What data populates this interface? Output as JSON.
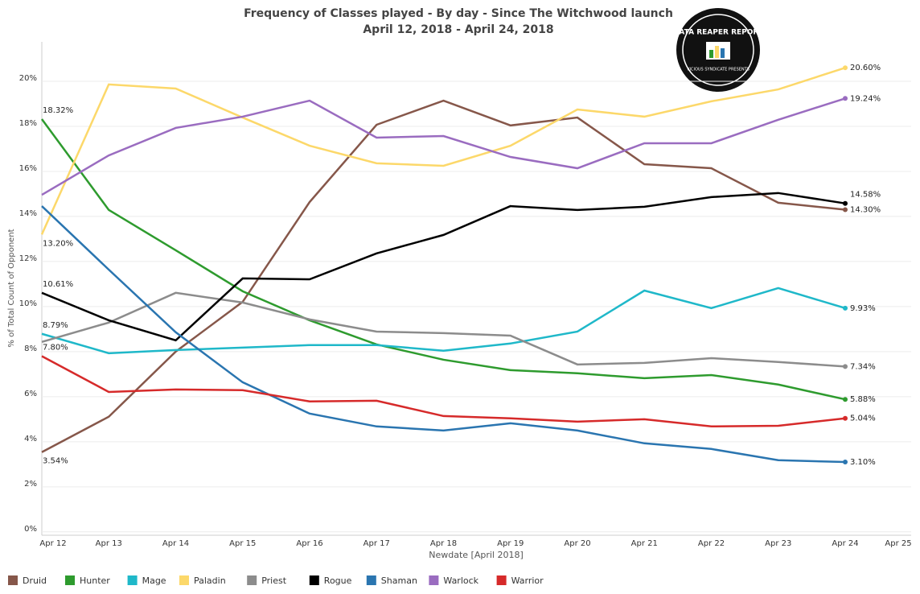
{
  "chart_data": {
    "type": "line",
    "title": "Frequency of Classes played - By day - Since The Witchwood launch",
    "subtitle": "April 12, 2018 - April 24, 2018",
    "logo": "DATA REAPER REPORT",
    "logo_subtext": "VICIOUS SYNDICATE PRESENTS",
    "x_label": "Newdate [April 2018]",
    "y_label": "% of Total Count of Opponent",
    "categories": [
      "Apr 12",
      "Apr 13",
      "Apr 14",
      "Apr 15",
      "Apr 16",
      "Apr 17",
      "Apr 18",
      "Apr 19",
      "Apr 20",
      "Apr 21",
      "Apr 22",
      "Apr 23",
      "Apr 24",
      "Apr 25"
    ],
    "ylim": [
      -0.15,
      21.75
    ],
    "yticks": [
      {
        "value": 0,
        "label": "0%"
      },
      {
        "value": 2,
        "label": "2%"
      },
      {
        "value": 4,
        "label": "4%"
      },
      {
        "value": 6,
        "label": "6%"
      },
      {
        "value": 8,
        "label": "8%"
      },
      {
        "value": 10,
        "label": "10%"
      },
      {
        "value": 12,
        "label": "12%"
      },
      {
        "value": 14,
        "label": "14%"
      },
      {
        "value": 16,
        "label": "16%"
      },
      {
        "value": 18,
        "label": "18%"
      },
      {
        "value": 20,
        "label": "20%"
      }
    ],
    "grid": true,
    "legend": "bottom",
    "series": [
      {
        "name": "Druid",
        "color": "#86574a",
        "values": [
          3.54,
          5.11,
          8.0,
          10.21,
          14.64,
          18.07,
          19.14,
          18.04,
          18.39,
          16.32,
          16.14,
          14.61,
          14.3,
          null
        ],
        "value_labels": [
          "3.54%",
          null,
          null,
          null,
          null,
          null,
          null,
          null,
          null,
          null,
          null,
          null,
          "14.30%",
          null
        ]
      },
      {
        "name": "Hunter",
        "color": "#2e9b2e",
        "values": [
          18.32,
          14.29,
          12.5,
          10.68,
          9.39,
          8.32,
          7.64,
          7.18,
          7.04,
          6.82,
          6.96,
          6.54,
          5.88,
          null
        ],
        "value_labels": [
          "18.32%",
          null,
          null,
          null,
          null,
          null,
          null,
          null,
          null,
          null,
          null,
          null,
          "5.88%",
          null
        ]
      },
      {
        "name": "Mage",
        "color": "#1fb8c9",
        "values": [
          8.79,
          7.93,
          8.07,
          8.18,
          8.29,
          8.29,
          8.04,
          8.36,
          8.89,
          10.71,
          9.93,
          10.82,
          9.93,
          null
        ],
        "value_labels": [
          "8.79%",
          null,
          null,
          null,
          null,
          null,
          null,
          null,
          null,
          null,
          null,
          null,
          "9.93%",
          null
        ]
      },
      {
        "name": "Paladin",
        "color": "#fcd86a",
        "values": [
          13.2,
          19.86,
          19.68,
          18.39,
          17.14,
          16.36,
          16.25,
          17.14,
          18.75,
          18.43,
          19.11,
          19.64,
          20.6,
          null
        ],
        "value_labels": [
          "13.20%",
          null,
          null,
          null,
          null,
          null,
          null,
          null,
          null,
          null,
          null,
          null,
          "20.60%",
          null
        ]
      },
      {
        "name": "Priest",
        "color": "#8c8c8c",
        "values": [
          8.43,
          9.29,
          10.61,
          10.18,
          9.43,
          8.89,
          8.82,
          8.71,
          7.43,
          7.5,
          7.71,
          7.54,
          7.34,
          null
        ],
        "value_labels": [
          null,
          null,
          null,
          null,
          null,
          null,
          null,
          null,
          null,
          null,
          null,
          null,
          "7.34%",
          null
        ]
      },
      {
        "name": "Rogue",
        "color": "#000000",
        "values": [
          10.61,
          9.39,
          8.5,
          11.25,
          11.21,
          12.36,
          13.18,
          14.46,
          14.29,
          14.43,
          14.86,
          15.04,
          14.58,
          null
        ],
        "value_labels": [
          "10.61%",
          null,
          null,
          null,
          null,
          null,
          null,
          null,
          null,
          null,
          null,
          null,
          "14.58%",
          null
        ]
      },
      {
        "name": "Shaman",
        "color": "#2a75b0",
        "values": [
          14.46,
          11.64,
          8.86,
          6.64,
          5.25,
          4.68,
          4.5,
          4.82,
          4.5,
          3.93,
          3.68,
          3.18,
          3.1,
          null
        ],
        "value_labels": [
          null,
          null,
          null,
          null,
          null,
          null,
          null,
          null,
          null,
          null,
          null,
          null,
          "3.10%",
          null
        ]
      },
      {
        "name": "Warlock",
        "color": "#9a6cc0",
        "values": [
          14.96,
          16.71,
          17.93,
          18.43,
          19.14,
          17.5,
          17.57,
          16.64,
          16.14,
          17.25,
          17.25,
          18.29,
          19.24,
          null
        ],
        "value_labels": [
          null,
          null,
          null,
          null,
          null,
          null,
          null,
          null,
          null,
          null,
          null,
          null,
          "19.24%",
          null
        ]
      },
      {
        "name": "Warrior",
        "color": "#d62a2a",
        "values": [
          7.8,
          6.21,
          6.32,
          6.29,
          5.79,
          5.82,
          5.14,
          5.04,
          4.89,
          5.0,
          4.68,
          4.71,
          5.04,
          null
        ],
        "value_labels": [
          "7.80%",
          null,
          null,
          null,
          null,
          null,
          null,
          null,
          null,
          null,
          null,
          null,
          "5.04%",
          null
        ]
      }
    ]
  }
}
